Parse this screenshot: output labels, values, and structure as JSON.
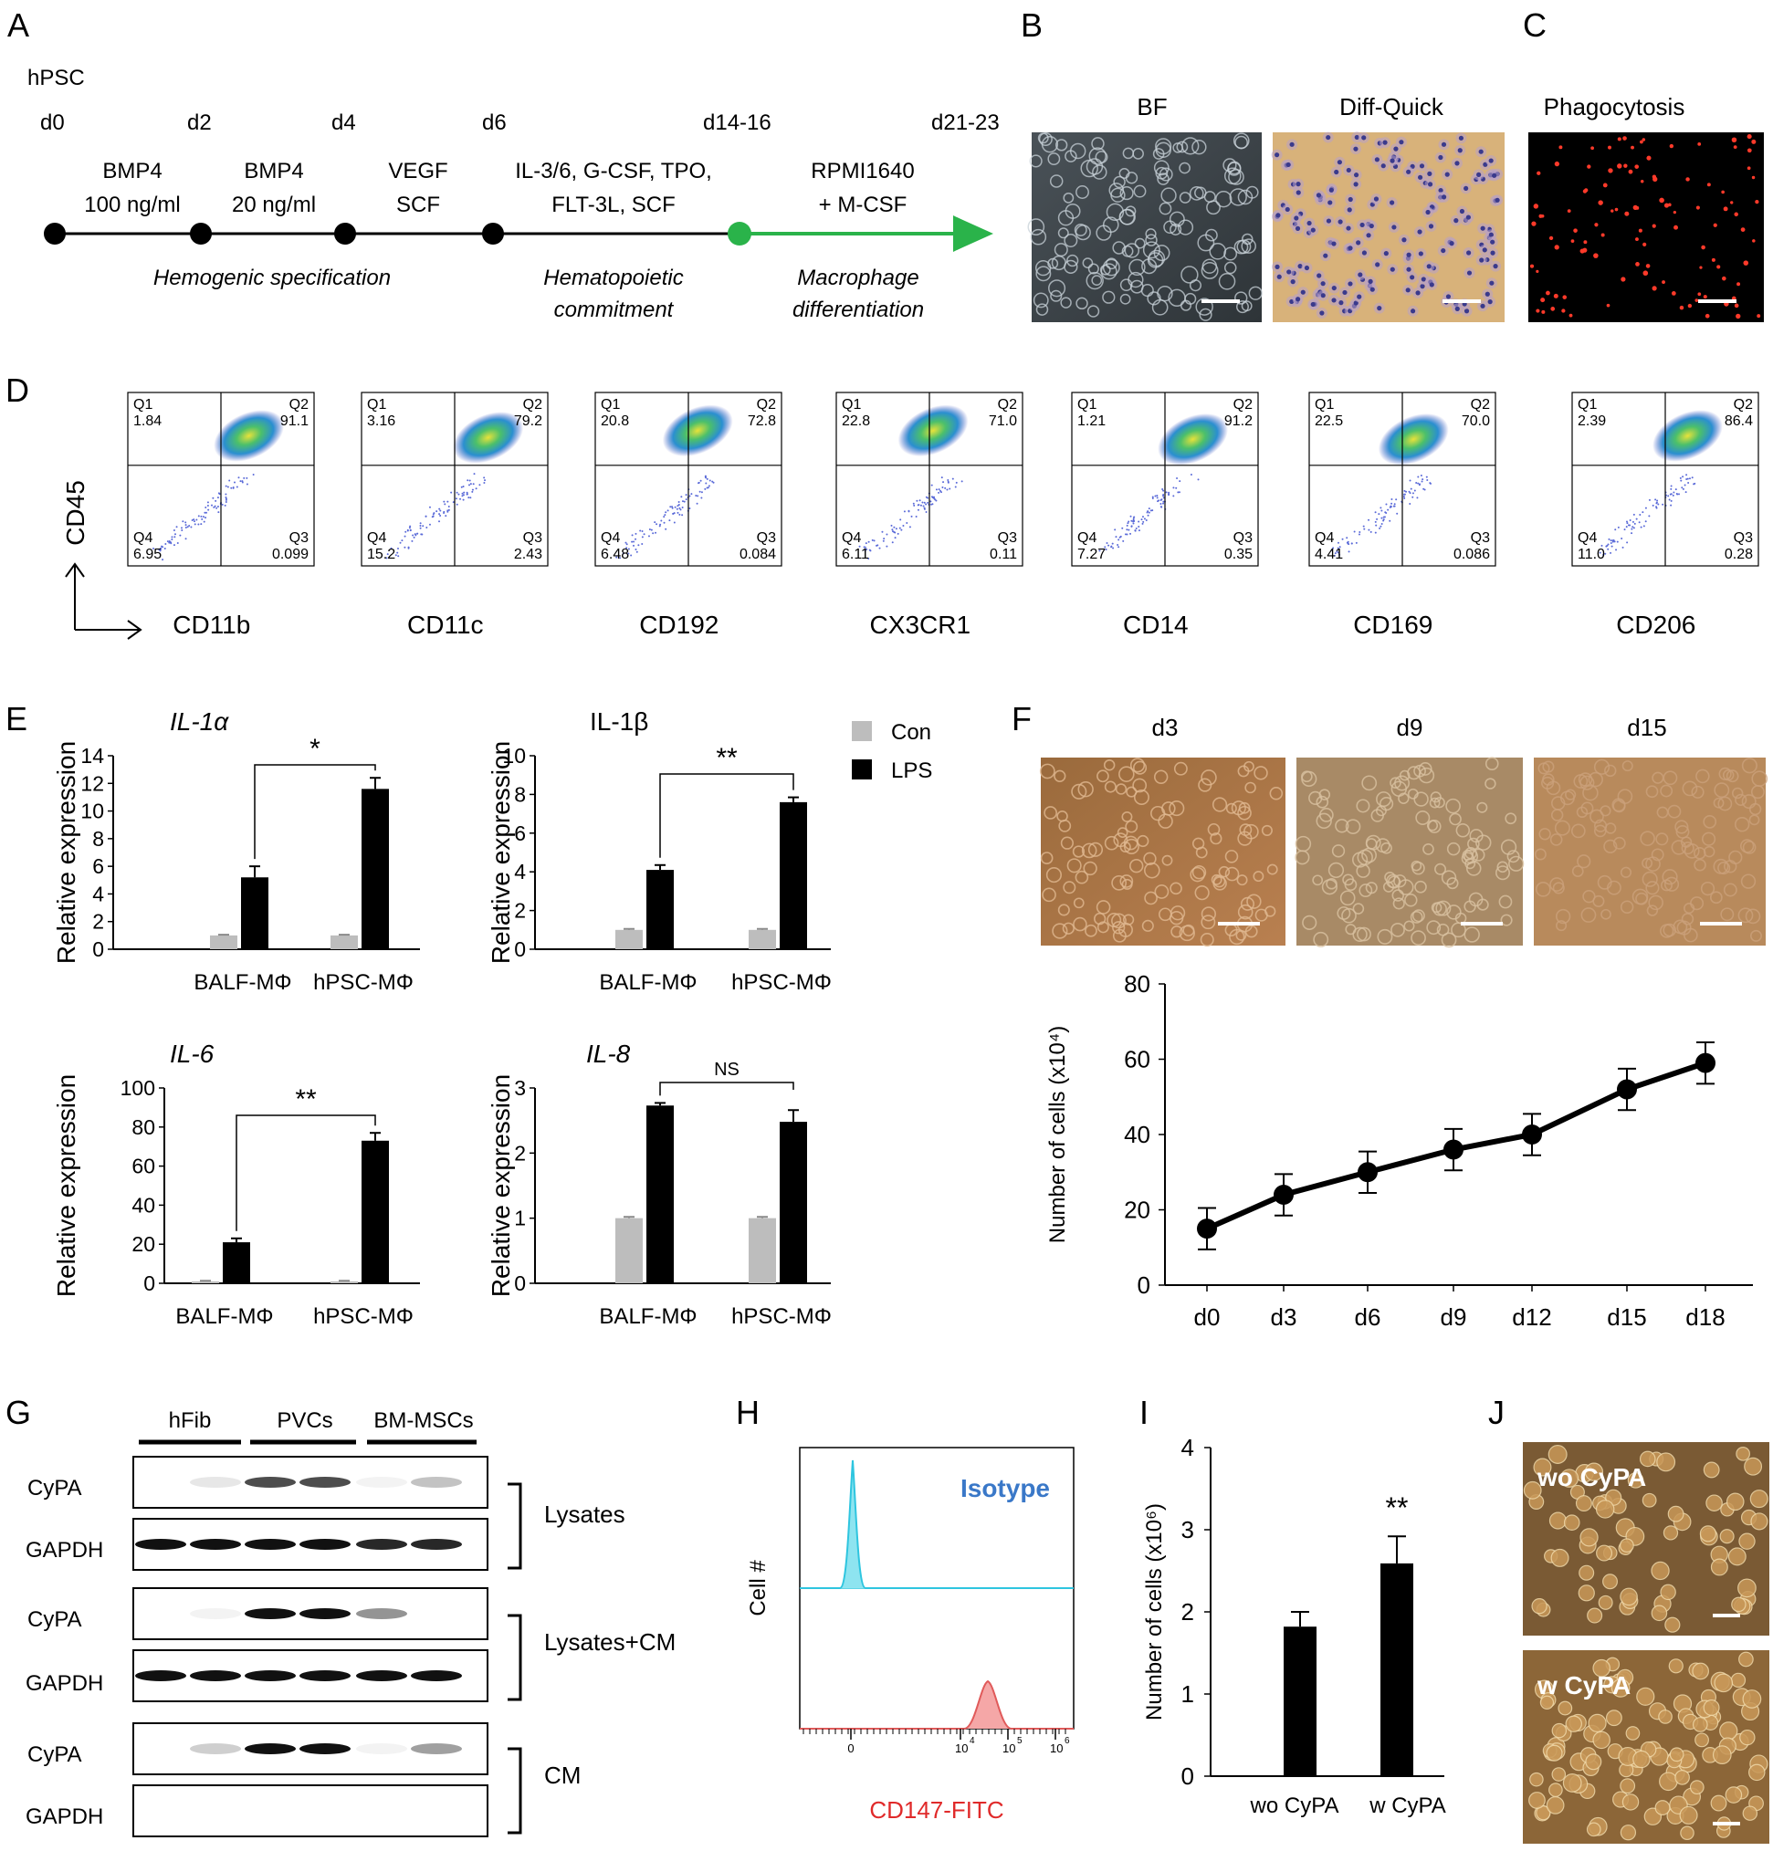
{
  "panelA": {
    "letter": "A",
    "start": "hPSC",
    "days": [
      "d0",
      "d2",
      "d4",
      "d6",
      "d14-16",
      "d21-23"
    ],
    "media": [
      [
        "BMP4",
        "100 ng/ml"
      ],
      [
        "BMP4",
        "20 ng/ml"
      ],
      [
        "VEGF",
        "SCF"
      ],
      [
        "IL-3/6, G-CSF, TPO,",
        "FLT-3L, SCF"
      ],
      [
        "RPMI1640",
        "+ M-CSF"
      ]
    ],
    "stages": [
      [
        "Hemogenic specification"
      ],
      [
        "Hematopoietic",
        "commitment"
      ],
      [
        "Macrophage",
        "differentiation"
      ]
    ],
    "colors": {
      "timeline": "#000000",
      "accent": "#2ab34a"
    }
  },
  "panelB": {
    "letter": "B",
    "titles": [
      "BF",
      "Diff-Quick"
    ]
  },
  "panelC": {
    "letter": "C",
    "title": "Phagocytosis"
  },
  "panelD": {
    "letter": "D",
    "ylabel": "CD45",
    "plots": [
      {
        "marker": "CD11b",
        "q1": "1.84",
        "q2": "91.1",
        "q3": "0.099",
        "q4": "6.95"
      },
      {
        "marker": "CD11c",
        "q1": "3.16",
        "q2": "79.2",
        "q3": "2.43",
        "q4": "15.2"
      },
      {
        "marker": "CD192",
        "q1": "20.8",
        "q2": "72.8",
        "q3": "0.084",
        "q4": "6.48"
      },
      {
        "marker": "CX3CR1",
        "q1": "22.8",
        "q2": "71.0",
        "q3": "0.11",
        "q4": "6.11"
      },
      {
        "marker": "CD14",
        "q1": "1.21",
        "q2": "91.2",
        "q3": "0.35",
        "q4": "7.27"
      },
      {
        "marker": "CD169",
        "q1": "22.5",
        "q2": "70.0",
        "q3": "0.086",
        "q4": "4.41"
      },
      {
        "marker": "CD206",
        "q1": "2.39",
        "q2": "86.4",
        "q3": "0.28",
        "q4": "11.0"
      }
    ]
  },
  "panelE": {
    "letter": "E",
    "legend": [
      "Con",
      "LPS"
    ]
  },
  "panelF": {
    "letter": "F",
    "image_titles": [
      "d3",
      "d9",
      "d15"
    ]
  },
  "panelG": {
    "letter": "G",
    "groups": [
      "hFib",
      "PVCs",
      "BM-MSCs"
    ],
    "rows": [
      "CyPA",
      "GAPDH",
      "CyPA",
      "GAPDH",
      "CyPA",
      "GAPDH"
    ],
    "fractions": [
      "Lysates",
      "Lysates+CM",
      "CM"
    ]
  },
  "panelH": {
    "letter": "H",
    "ylabel": "Cell #",
    "xlabel": "CD147-FITC",
    "isotype": "Isotype",
    "ticks": [
      "0",
      "10",
      "4",
      "10",
      "5",
      "10",
      "6"
    ]
  },
  "panelI": {
    "letter": "I"
  },
  "panelJ": {
    "letter": "J",
    "labels": [
      "wo CyPA",
      "w CyPA"
    ]
  },
  "chart_data": [
    {
      "id": "E-IL1a",
      "type": "bar",
      "title": "IL-1α",
      "ylabel": "Relative expression",
      "categories": [
        "BALF-MΦ",
        "hPSC-MΦ"
      ],
      "ylim": [
        0,
        14
      ],
      "yticks": [
        0,
        2,
        4,
        6,
        8,
        10,
        12,
        14
      ],
      "series": [
        {
          "name": "Con",
          "values": [
            1,
            1
          ],
          "errors": [
            0.05,
            0.05
          ]
        },
        {
          "name": "LPS",
          "values": [
            5.2,
            11.6
          ],
          "errors": [
            0.8,
            0.8
          ]
        }
      ],
      "significance": "*"
    },
    {
      "id": "E-IL1b",
      "type": "bar",
      "title": "IL-1β",
      "ylabel": "Relative expression",
      "categories": [
        "BALF-MΦ",
        "hPSC-MΦ"
      ],
      "ylim": [
        0,
        10
      ],
      "yticks": [
        0,
        2,
        4,
        6,
        8,
        10
      ],
      "series": [
        {
          "name": "Con",
          "values": [
            1,
            1
          ],
          "errors": [
            0.05,
            0.05
          ]
        },
        {
          "name": "LPS",
          "values": [
            4.1,
            7.6
          ],
          "errors": [
            0.25,
            0.25
          ]
        }
      ],
      "significance": "**"
    },
    {
      "id": "E-IL6",
      "type": "bar",
      "title": "IL-6",
      "ylabel": "Relative expression",
      "categories": [
        "BALF-MΦ",
        "hPSC-MΦ"
      ],
      "ylim": [
        0,
        100
      ],
      "yticks": [
        0,
        20,
        40,
        60,
        80,
        100
      ],
      "series": [
        {
          "name": "Con",
          "values": [
            1,
            1
          ],
          "errors": [
            0.3,
            0.3
          ]
        },
        {
          "name": "LPS",
          "values": [
            21,
            73
          ],
          "errors": [
            2,
            4
          ]
        }
      ],
      "significance": "**"
    },
    {
      "id": "E-IL8",
      "type": "bar",
      "title": "IL-8",
      "ylabel": "Relative expression",
      "categories": [
        "BALF-MΦ",
        "hPSC-MΦ"
      ],
      "ylim": [
        0,
        3
      ],
      "yticks": [
        0,
        1,
        2,
        3
      ],
      "series": [
        {
          "name": "Con",
          "values": [
            1,
            1
          ],
          "errors": [
            0.02,
            0.02
          ]
        },
        {
          "name": "LPS",
          "values": [
            2.73,
            2.48
          ],
          "errors": [
            0.04,
            0.18
          ]
        }
      ],
      "significance": "NS"
    },
    {
      "id": "F-growth",
      "type": "line",
      "ylabel": "Number of cells (x10⁴)",
      "categories": [
        "d0",
        "d3",
        "d6",
        "d9",
        "d12",
        "d15",
        "d18"
      ],
      "values": [
        15,
        24,
        30,
        36,
        40,
        52,
        59
      ],
      "errors": [
        5.5,
        5.5,
        5.5,
        5.5,
        5.5,
        5.5,
        5.5
      ],
      "ylim": [
        0,
        80
      ],
      "yticks": [
        0,
        20,
        40,
        60,
        80
      ]
    },
    {
      "id": "I-cyPA",
      "type": "bar",
      "ylabel": "Number of cells (x10⁶)",
      "categories": [
        "wo CyPA",
        "w CyPA"
      ],
      "values": [
        1.82,
        2.59
      ],
      "errors": [
        0.18,
        0.33
      ],
      "ylim": [
        0,
        4
      ],
      "yticks": [
        0,
        1,
        2,
        3,
        4
      ],
      "significance": "**"
    }
  ]
}
